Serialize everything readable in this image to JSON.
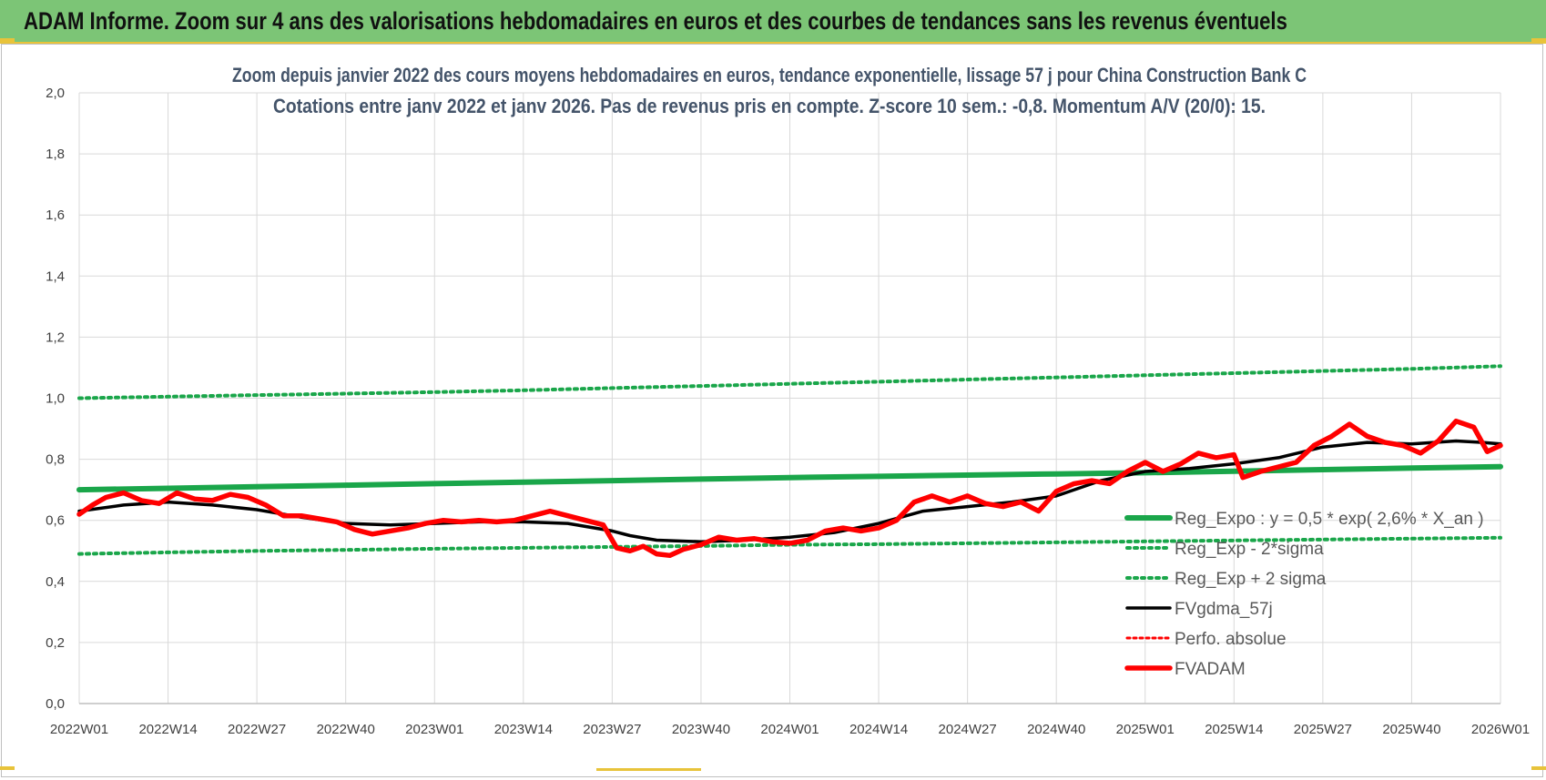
{
  "banner": {
    "title": "ADAM Informe. Zoom sur 4 ans des valorisations hebdomadaires en euros et des courbes de tendances sans les revenus éventuels"
  },
  "colors": {
    "banner_bg": "#7cc576",
    "accent_yellow": "#e8c33a",
    "reg_expo": "#1aa64a",
    "reg_band": "#1aa64a",
    "fvgdma": "#000000",
    "fvadam": "#ff0000",
    "perfo": "#ff0000",
    "grid": "#d9d9d9",
    "title_text": "#44546a"
  },
  "chart_data": {
    "type": "line",
    "title": "Zoom depuis janvier 2022 des cours moyens hebdomadaires en euros, tendance exponentielle, lissage 57 j pour China Construction Bank C",
    "subtitle": "Cotations entre janv 2022 et janv 2026. Pas de revenus pris en compte. Z-score 10 sem.: -0,8. Momentum A/V (20/0): 15.",
    "xlabel": "",
    "ylabel": "",
    "ylim": [
      0,
      2
    ],
    "y_ticks": [
      "0,0",
      "0,2",
      "0,4",
      "0,6",
      "0,8",
      "1,0",
      "1,2",
      "1,4",
      "1,6",
      "1,8",
      "2,0"
    ],
    "x_ticks": [
      "2022W01",
      "2022W14",
      "2022W27",
      "2022W40",
      "2023W01",
      "2023W14",
      "2023W27",
      "2023W40",
      "2024W01",
      "2024W14",
      "2024W27",
      "2024W40",
      "2025W01",
      "2025W14",
      "2025W27",
      "2025W40",
      "2026W01"
    ],
    "grid": true,
    "legend_position": "bottom-right",
    "series": [
      {
        "name": "Reg_Expo : y = 0,5 * exp( 2,6% *  X_an )",
        "style": "solid-thick",
        "values": [
          0.7,
          0.705,
          0.71,
          0.715,
          0.72,
          0.725,
          0.73,
          0.735,
          0.74,
          0.744,
          0.748,
          0.752,
          0.756,
          0.761,
          0.766,
          0.771,
          0.776
        ]
      },
      {
        "name": "Reg_Exp - 2*sigma",
        "style": "dotted",
        "values": [
          0.49,
          0.495,
          0.5,
          0.503,
          0.507,
          0.51,
          0.513,
          0.516,
          0.52,
          0.522,
          0.525,
          0.528,
          0.531,
          0.534,
          0.537,
          0.54,
          0.543
        ]
      },
      {
        "name": "Reg_Exp + 2 sigma",
        "style": "dotted",
        "values": [
          1.0,
          1.005,
          1.01,
          1.015,
          1.02,
          1.026,
          1.033,
          1.04,
          1.047,
          1.054,
          1.061,
          1.068,
          1.075,
          1.082,
          1.089,
          1.096,
          1.105
        ]
      },
      {
        "name": "FVgdma_57j",
        "style": "solid",
        "x": [
          0,
          0.5,
          1,
          1.5,
          2,
          2.5,
          3,
          3.5,
          4,
          4.5,
          5,
          5.5,
          6,
          6.2,
          6.5,
          7,
          7.5,
          8,
          8.5,
          9,
          9.5,
          10,
          10.5,
          11,
          11.5,
          12,
          12.5,
          13,
          13.5,
          14,
          14.5,
          15,
          15.5,
          15.8,
          16
        ],
        "values": [
          0.63,
          0.65,
          0.66,
          0.65,
          0.635,
          0.61,
          0.59,
          0.585,
          0.59,
          0.595,
          0.595,
          0.59,
          0.565,
          0.55,
          0.535,
          0.53,
          0.535,
          0.545,
          0.56,
          0.59,
          0.63,
          0.645,
          0.66,
          0.68,
          0.73,
          0.76,
          0.77,
          0.785,
          0.805,
          0.84,
          0.855,
          0.85,
          0.86,
          0.855,
          0.85
        ]
      },
      {
        "name": "Perfo. absolue",
        "style": "dotted-red",
        "values": []
      },
      {
        "name": "FVADAM",
        "style": "solid-thick-red",
        "x": [
          0,
          0.15,
          0.3,
          0.5,
          0.7,
          0.9,
          1.1,
          1.3,
          1.5,
          1.7,
          1.9,
          2.1,
          2.3,
          2.5,
          2.7,
          2.9,
          3.1,
          3.3,
          3.5,
          3.7,
          3.9,
          4.1,
          4.3,
          4.5,
          4.7,
          4.9,
          5.1,
          5.3,
          5.5,
          5.7,
          5.9,
          6.05,
          6.2,
          6.35,
          6.5,
          6.65,
          6.8,
          7.0,
          7.2,
          7.4,
          7.6,
          7.8,
          8.0,
          8.2,
          8.4,
          8.6,
          8.8,
          9.0,
          9.2,
          9.4,
          9.6,
          9.8,
          10.0,
          10.2,
          10.4,
          10.6,
          10.8,
          11.0,
          11.2,
          11.4,
          11.6,
          11.8,
          12.0,
          12.2,
          12.4,
          12.6,
          12.8,
          13.0,
          13.1,
          13.3,
          13.5,
          13.7,
          13.9,
          14.1,
          14.3,
          14.5,
          14.7,
          14.9,
          15.1,
          15.3,
          15.5,
          15.7,
          15.85,
          16.0
        ],
        "values": [
          0.62,
          0.65,
          0.675,
          0.69,
          0.665,
          0.655,
          0.69,
          0.67,
          0.665,
          0.685,
          0.675,
          0.65,
          0.615,
          0.615,
          0.605,
          0.595,
          0.57,
          0.555,
          0.565,
          0.575,
          0.59,
          0.6,
          0.595,
          0.6,
          0.595,
          0.6,
          0.615,
          0.63,
          0.615,
          0.6,
          0.585,
          0.51,
          0.5,
          0.515,
          0.49,
          0.485,
          0.505,
          0.52,
          0.545,
          0.535,
          0.54,
          0.53,
          0.525,
          0.535,
          0.565,
          0.575,
          0.565,
          0.575,
          0.6,
          0.66,
          0.68,
          0.66,
          0.68,
          0.655,
          0.645,
          0.66,
          0.63,
          0.695,
          0.72,
          0.73,
          0.72,
          0.76,
          0.79,
          0.76,
          0.785,
          0.82,
          0.805,
          0.815,
          0.74,
          0.76,
          0.775,
          0.79,
          0.845,
          0.875,
          0.915,
          0.875,
          0.855,
          0.845,
          0.82,
          0.86,
          0.925,
          0.905,
          0.825,
          0.845
        ]
      }
    ]
  }
}
